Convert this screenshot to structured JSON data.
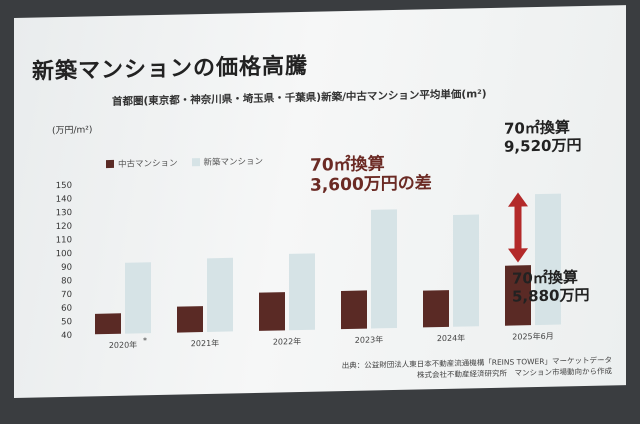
{
  "chart_data": {
    "type": "bar",
    "title": "新築マンションの価格高騰",
    "subtitle": "首都圏(東京都・神奈川県・埼玉県・千葉県)新築/中古マンション平均単価(m²)",
    "ylabel": "(万円/m²)",
    "ylim": [
      40,
      150
    ],
    "yticks": [
      40,
      50,
      60,
      70,
      80,
      90,
      100,
      110,
      120,
      130,
      140,
      150
    ],
    "categories": [
      "2020年",
      "2021年",
      "2022年",
      "2023年",
      "2024年",
      "2025年6月"
    ],
    "category_marks": [
      "*",
      "",
      "",
      "",
      "",
      ""
    ],
    "series": [
      {
        "name": "中古マンション",
        "color": "#5a2a25",
        "values": [
          55,
          59,
          68,
          68,
          67,
          84
        ]
      },
      {
        "name": "新築マンション",
        "color": "#d6e3e6",
        "values": [
          92,
          94,
          96,
          127,
          122,
          136
        ]
      }
    ],
    "legend_position": "top-left",
    "grid": false,
    "annotations": {
      "new_line1": "70㎡換算",
      "new_line2": "9,520万円",
      "diff_line1": "70㎡換算",
      "diff_line2": "3,600万円の差",
      "used_line1": "70㎡換算",
      "used_line2": "5,880万円"
    },
    "arrow_color": "#b32a2a"
  },
  "source": {
    "line1": "出典：公益財団法人東日本不動産流通機構「REINS TOWER」マーケットデータ",
    "line2": "株式会社不動産経済研究所　マンション市場動向から作成"
  }
}
